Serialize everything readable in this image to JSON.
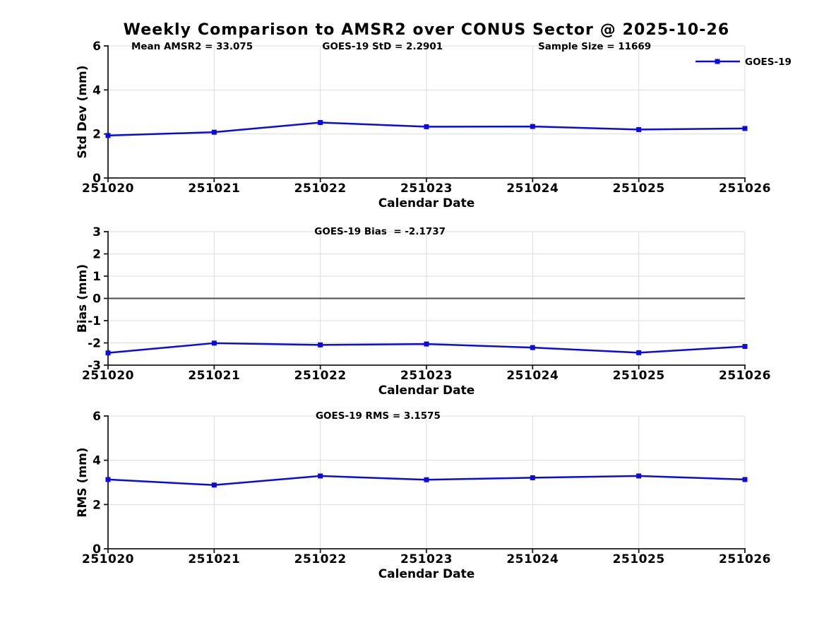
{
  "title": "Weekly Comparison to AMSR2 over CONUS Sector @ 2025-10-26",
  "colors": {
    "series_blue": "#0b0be0",
    "grid": "#dcdcdc",
    "axis": "#1a1a1a",
    "zero_line": "#4d4d4d",
    "text": "#000000",
    "background": "#ffffff"
  },
  "legend": {
    "label": "GOES-19",
    "position": "top-right-inside"
  },
  "xlabel": "Calendar Date",
  "chart_data": [
    {
      "type": "line",
      "name": "std-dev",
      "title": "",
      "categories": [
        "251020",
        "251021",
        "251022",
        "251023",
        "251024",
        "251025",
        "251026"
      ],
      "series": [
        {
          "name": "GOES-19",
          "values": [
            1.93,
            2.08,
            2.52,
            2.33,
            2.34,
            2.2,
            2.25
          ]
        }
      ],
      "ylabel": "Std Dev (mm)",
      "xlabel": "Calendar Date",
      "ylim": [
        0,
        6
      ],
      "yticks": [
        0,
        2,
        4,
        6
      ],
      "grid": true,
      "zero_line": false,
      "show_legend": true,
      "annotations": [
        {
          "text": "Mean AMSR2 = 33.075",
          "xfrac": 0.132
        },
        {
          "text": "GOES-19 StD = 2.2901",
          "xfrac": 0.431
        },
        {
          "text": "Sample Size = 11669",
          "xfrac": 0.764
        }
      ]
    },
    {
      "type": "line",
      "name": "bias",
      "title": "",
      "categories": [
        "251020",
        "251021",
        "251022",
        "251023",
        "251024",
        "251025",
        "251026"
      ],
      "series": [
        {
          "name": "GOES-19",
          "values": [
            -2.45,
            -2.01,
            -2.09,
            -2.05,
            -2.21,
            -2.44,
            -2.16
          ]
        }
      ],
      "ylabel": "Bias (mm)",
      "xlabel": "Calendar Date",
      "ylim": [
        -3,
        3
      ],
      "yticks": [
        -3,
        -2,
        -1,
        0,
        1,
        2,
        3
      ],
      "grid": true,
      "zero_line": true,
      "show_legend": false,
      "annotations": [
        {
          "text": "GOES-19 Bias  = -2.1737",
          "xfrac": 0.427
        }
      ]
    },
    {
      "type": "line",
      "name": "rms",
      "title": "",
      "categories": [
        "251020",
        "251021",
        "251022",
        "251023",
        "251024",
        "251025",
        "251026"
      ],
      "series": [
        {
          "name": "GOES-19",
          "values": [
            3.13,
            2.88,
            3.29,
            3.12,
            3.21,
            3.29,
            3.13
          ]
        }
      ],
      "ylabel": "RMS (mm)",
      "xlabel": "Calendar Date",
      "ylim": [
        0,
        6
      ],
      "yticks": [
        0,
        2,
        4,
        6
      ],
      "grid": true,
      "zero_line": false,
      "show_legend": false,
      "annotations": [
        {
          "text": "GOES-19 RMS = 3.1575",
          "xfrac": 0.424
        }
      ]
    }
  ]
}
